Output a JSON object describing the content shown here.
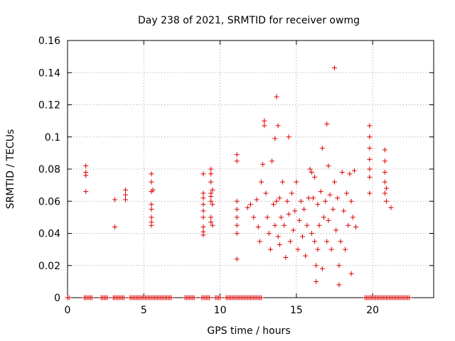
{
  "chart_data": {
    "type": "scatter",
    "title": "Day 238 of 2021, SRMTID for receiver owmg",
    "xlabel": "GPS time / hours",
    "ylabel": "SRMTID / TECUs",
    "xlim": [
      0,
      24
    ],
    "ylim": [
      0,
      0.16
    ],
    "xticks": [
      0,
      5,
      10,
      15,
      20
    ],
    "xtick_labels": [
      "0",
      "5",
      "10",
      "15",
      "20"
    ],
    "yticks": [
      0,
      0.02,
      0.04,
      0.06,
      0.08,
      0.1,
      0.12,
      0.14,
      0.16
    ],
    "ytick_labels": [
      "0",
      "0.02",
      "0.04",
      "0.06",
      "0.08",
      "0.1",
      "0.12",
      "0.14",
      "0.16"
    ],
    "grid": true,
    "marker": "plus",
    "color": "#dd0000",
    "series": [
      {
        "name": "owmg",
        "points": [
          [
            1.2,
            0.082
          ],
          [
            1.2,
            0.078
          ],
          [
            1.2,
            0.076
          ],
          [
            1.2,
            0.066
          ],
          [
            3.1,
            0.061
          ],
          [
            3.1,
            0.044
          ],
          [
            3.8,
            0.067
          ],
          [
            3.8,
            0.064
          ],
          [
            3.8,
            0.061
          ],
          [
            5.5,
            0.077
          ],
          [
            5.5,
            0.072
          ],
          [
            5.6,
            0.067
          ],
          [
            5.5,
            0.066
          ],
          [
            5.5,
            0.058
          ],
          [
            5.5,
            0.055
          ],
          [
            5.5,
            0.05
          ],
          [
            5.5,
            0.047
          ],
          [
            5.5,
            0.045
          ],
          [
            8.9,
            0.077
          ],
          [
            8.9,
            0.065
          ],
          [
            8.9,
            0.062
          ],
          [
            8.9,
            0.058
          ],
          [
            8.9,
            0.054
          ],
          [
            8.9,
            0.05
          ],
          [
            8.9,
            0.044
          ],
          [
            8.9,
            0.041
          ],
          [
            8.9,
            0.039
          ],
          [
            9.4,
            0.08
          ],
          [
            9.4,
            0.077
          ],
          [
            9.4,
            0.072
          ],
          [
            9.5,
            0.067
          ],
          [
            9.4,
            0.065
          ],
          [
            9.4,
            0.063
          ],
          [
            9.4,
            0.06
          ],
          [
            9.5,
            0.058
          ],
          [
            9.4,
            0.05
          ],
          [
            9.4,
            0.047
          ],
          [
            9.5,
            0.045
          ],
          [
            11.1,
            0.089
          ],
          [
            11.1,
            0.085
          ],
          [
            11.1,
            0.06
          ],
          [
            11.1,
            0.055
          ],
          [
            11.1,
            0.05
          ],
          [
            11.1,
            0.045
          ],
          [
            11.1,
            0.04
          ],
          [
            11.1,
            0.024
          ],
          [
            11.8,
            0.056
          ],
          [
            12.0,
            0.058
          ],
          [
            12.2,
            0.05
          ],
          [
            12.4,
            0.061
          ],
          [
            12.5,
            0.044
          ],
          [
            12.6,
            0.035
          ],
          [
            12.7,
            0.072
          ],
          [
            12.8,
            0.083
          ],
          [
            12.9,
            0.11
          ],
          [
            12.9,
            0.107
          ],
          [
            13.0,
            0.065
          ],
          [
            13.1,
            0.05
          ],
          [
            13.2,
            0.04
          ],
          [
            13.3,
            0.03
          ],
          [
            13.4,
            0.085
          ],
          [
            13.5,
            0.058
          ],
          [
            13.6,
            0.099
          ],
          [
            13.6,
            0.045
          ],
          [
            13.7,
            0.125
          ],
          [
            13.7,
            0.06
          ],
          [
            13.8,
            0.107
          ],
          [
            13.8,
            0.038
          ],
          [
            13.9,
            0.062
          ],
          [
            13.9,
            0.033
          ],
          [
            14.0,
            0.05
          ],
          [
            14.1,
            0.072
          ],
          [
            14.2,
            0.045
          ],
          [
            14.3,
            0.025
          ],
          [
            14.4,
            0.06
          ],
          [
            14.5,
            0.1
          ],
          [
            14.5,
            0.052
          ],
          [
            14.6,
            0.035
          ],
          [
            14.7,
            0.065
          ],
          [
            14.8,
            0.042
          ],
          [
            14.9,
            0.054
          ],
          [
            15.0,
            0.072
          ],
          [
            15.1,
            0.03
          ],
          [
            15.2,
            0.048
          ],
          [
            15.3,
            0.06
          ],
          [
            15.4,
            0.038
          ],
          [
            15.5,
            0.055
          ],
          [
            15.6,
            0.026
          ],
          [
            15.7,
            0.045
          ],
          [
            15.8,
            0.062
          ],
          [
            15.9,
            0.08
          ],
          [
            16.0,
            0.078
          ],
          [
            16.0,
            0.04
          ],
          [
            16.1,
            0.062
          ],
          [
            16.2,
            0.035
          ],
          [
            16.2,
            0.075
          ],
          [
            16.3,
            0.02
          ],
          [
            16.3,
            0.01
          ],
          [
            16.4,
            0.058
          ],
          [
            16.4,
            0.03
          ],
          [
            16.5,
            0.045
          ],
          [
            16.6,
            0.066
          ],
          [
            16.7,
            0.093
          ],
          [
            16.7,
            0.018
          ],
          [
            16.8,
            0.05
          ],
          [
            16.9,
            0.06
          ],
          [
            17.0,
            0.108
          ],
          [
            17.0,
            0.035
          ],
          [
            17.1,
            0.082
          ],
          [
            17.1,
            0.048
          ],
          [
            17.2,
            0.064
          ],
          [
            17.3,
            0.03
          ],
          [
            17.4,
            0.055
          ],
          [
            17.5,
            0.143
          ],
          [
            17.5,
            0.072
          ],
          [
            17.6,
            0.042
          ],
          [
            17.7,
            0.062
          ],
          [
            17.8,
            0.02
          ],
          [
            17.8,
            0.008
          ],
          [
            17.9,
            0.035
          ],
          [
            18.0,
            0.078
          ],
          [
            18.1,
            0.054
          ],
          [
            18.2,
            0.03
          ],
          [
            18.3,
            0.065
          ],
          [
            18.4,
            0.045
          ],
          [
            18.5,
            0.077
          ],
          [
            18.6,
            0.06
          ],
          [
            18.6,
            0.015
          ],
          [
            18.7,
            0.05
          ],
          [
            18.8,
            0.079
          ],
          [
            18.9,
            0.044
          ],
          [
            19.8,
            0.107
          ],
          [
            19.8,
            0.1
          ],
          [
            19.8,
            0.093
          ],
          [
            19.8,
            0.086
          ],
          [
            19.8,
            0.08
          ],
          [
            19.8,
            0.075
          ],
          [
            19.8,
            0.065
          ],
          [
            20.8,
            0.092
          ],
          [
            20.8,
            0.085
          ],
          [
            20.8,
            0.078
          ],
          [
            20.8,
            0.072
          ],
          [
            20.9,
            0.068
          ],
          [
            20.8,
            0.065
          ],
          [
            20.9,
            0.06
          ],
          [
            21.2,
            0.056
          ]
        ]
      }
    ],
    "zero_runs": [
      [
        0,
        0.1
      ],
      [
        1.1,
        1.6
      ],
      [
        2.2,
        2.6
      ],
      [
        3.0,
        3.7
      ],
      [
        4.1,
        6.8
      ],
      [
        7.7,
        8.3
      ],
      [
        8.8,
        9.3
      ],
      [
        9.7,
        10.0
      ],
      [
        10.4,
        12.7
      ],
      [
        19.5,
        22.4
      ]
    ]
  }
}
